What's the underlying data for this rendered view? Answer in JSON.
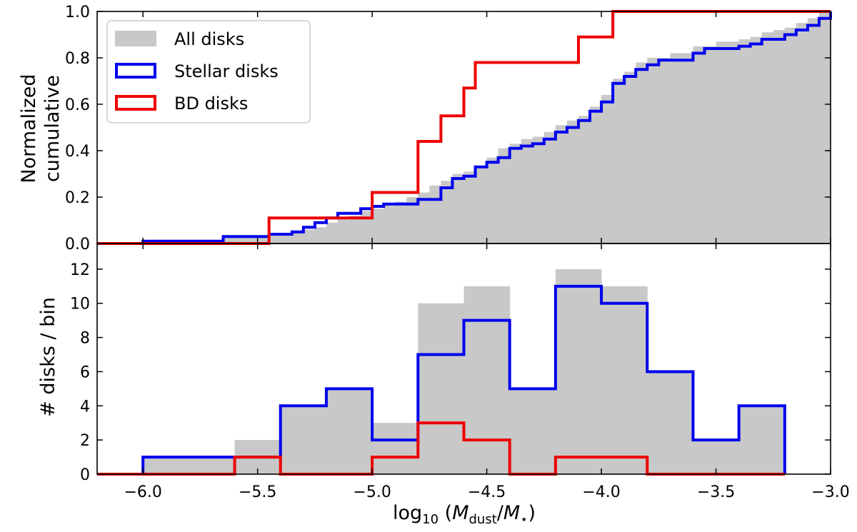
{
  "chart_data": [
    {
      "type": "step-histogram-cumulative",
      "panel": "top",
      "ylabel_lines": [
        "Normalized",
        "cumulative"
      ],
      "xlim": [
        -6.2,
        -3.0
      ],
      "ylim": [
        0.0,
        1.0
      ],
      "yticks": [
        0.0,
        0.2,
        0.4,
        0.6,
        0.8,
        1.0
      ],
      "ytick_labels": [
        "0.0",
        "0.2",
        "0.4",
        "0.6",
        "0.8",
        "1.0"
      ],
      "xticks": [
        -6.0,
        -5.5,
        -5.0,
        -4.5,
        -4.0,
        -3.5,
        -3.0
      ],
      "legend": {
        "placement": "upper-left",
        "entries": [
          {
            "label": "All disks",
            "style": "filled",
            "color": "#c8c8c8"
          },
          {
            "label": "Stellar disks",
            "style": "outline",
            "color": "#0000ee"
          },
          {
            "label": "BD disks",
            "style": "outline",
            "color": "#ee0000"
          }
        ]
      },
      "series": [
        {
          "name": "All disks",
          "color": "#c8c8c8",
          "style": "filled",
          "steps": [
            [
              -6.2,
              0
            ],
            [
              -6.0,
              0.01
            ],
            [
              -5.65,
              0.03
            ],
            [
              -5.45,
              0.04
            ],
            [
              -5.35,
              0.05
            ],
            [
              -5.3,
              0.06
            ],
            [
              -5.25,
              0.07
            ],
            [
              -5.2,
              0.09
            ],
            [
              -5.15,
              0.11
            ],
            [
              -5.1,
              0.12
            ],
            [
              -5.05,
              0.14
            ],
            [
              -5.0,
              0.15
            ],
            [
              -4.95,
              0.17
            ],
            [
              -4.9,
              0.18
            ],
            [
              -4.85,
              0.2
            ],
            [
              -4.8,
              0.22
            ],
            [
              -4.75,
              0.25
            ],
            [
              -4.7,
              0.27
            ],
            [
              -4.65,
              0.3
            ],
            [
              -4.6,
              0.31
            ],
            [
              -4.55,
              0.33
            ],
            [
              -4.5,
              0.37
            ],
            [
              -4.45,
              0.41
            ],
            [
              -4.4,
              0.43
            ],
            [
              -4.35,
              0.45
            ],
            [
              -4.3,
              0.46
            ],
            [
              -4.25,
              0.48
            ],
            [
              -4.2,
              0.51
            ],
            [
              -4.15,
              0.53
            ],
            [
              -4.1,
              0.55
            ],
            [
              -4.05,
              0.59
            ],
            [
              -4.0,
              0.64
            ],
            [
              -3.95,
              0.71
            ],
            [
              -3.9,
              0.74
            ],
            [
              -3.85,
              0.78
            ],
            [
              -3.8,
              0.8
            ],
            [
              -3.7,
              0.82
            ],
            [
              -3.6,
              0.85
            ],
            [
              -3.5,
              0.87
            ],
            [
              -3.4,
              0.88
            ],
            [
              -3.35,
              0.89
            ],
            [
              -3.3,
              0.91
            ],
            [
              -3.25,
              0.92
            ],
            [
              -3.2,
              0.93
            ],
            [
              -3.15,
              0.95
            ],
            [
              -3.1,
              0.97
            ],
            [
              -3.05,
              1.0
            ],
            [
              -3.0,
              1.0
            ]
          ]
        },
        {
          "name": "Stellar disks",
          "color": "#0000ee",
          "style": "outline",
          "steps": [
            [
              -6.2,
              0
            ],
            [
              -6.0,
              0.01
            ],
            [
              -5.65,
              0.03
            ],
            [
              -5.45,
              0.04
            ],
            [
              -5.35,
              0.05
            ],
            [
              -5.3,
              0.07
            ],
            [
              -5.25,
              0.09
            ],
            [
              -5.2,
              0.11
            ],
            [
              -5.15,
              0.13
            ],
            [
              -5.05,
              0.15
            ],
            [
              -5.0,
              0.16
            ],
            [
              -4.95,
              0.17
            ],
            [
              -4.8,
              0.19
            ],
            [
              -4.7,
              0.24
            ],
            [
              -4.65,
              0.28
            ],
            [
              -4.6,
              0.29
            ],
            [
              -4.55,
              0.33
            ],
            [
              -4.5,
              0.35
            ],
            [
              -4.45,
              0.37
            ],
            [
              -4.4,
              0.41
            ],
            [
              -4.35,
              0.42
            ],
            [
              -4.3,
              0.43
            ],
            [
              -4.25,
              0.45
            ],
            [
              -4.2,
              0.48
            ],
            [
              -4.15,
              0.5
            ],
            [
              -4.1,
              0.53
            ],
            [
              -4.05,
              0.57
            ],
            [
              -4.0,
              0.61
            ],
            [
              -3.95,
              0.69
            ],
            [
              -3.9,
              0.72
            ],
            [
              -3.85,
              0.75
            ],
            [
              -3.8,
              0.77
            ],
            [
              -3.75,
              0.79
            ],
            [
              -3.6,
              0.82
            ],
            [
              -3.55,
              0.84
            ],
            [
              -3.4,
              0.85
            ],
            [
              -3.35,
              0.86
            ],
            [
              -3.3,
              0.88
            ],
            [
              -3.2,
              0.9
            ],
            [
              -3.15,
              0.92
            ],
            [
              -3.1,
              0.94
            ],
            [
              -3.05,
              0.97
            ],
            [
              -3.0,
              1.0
            ]
          ]
        },
        {
          "name": "BD disks",
          "color": "#ee0000",
          "style": "outline",
          "steps": [
            [
              -6.2,
              0
            ],
            [
              -5.45,
              0.11
            ],
            [
              -5.0,
              0.22
            ],
            [
              -4.8,
              0.44
            ],
            [
              -4.7,
              0.55
            ],
            [
              -4.6,
              0.67
            ],
            [
              -4.55,
              0.78
            ],
            [
              -4.1,
              0.89
            ],
            [
              -3.95,
              1.0
            ],
            [
              -3.0,
              1.0
            ]
          ]
        }
      ]
    },
    {
      "type": "step-histogram",
      "panel": "bottom",
      "ylabel": "# disks / bin",
      "xlabel": "log₁₀ (M_dust/M⋆)",
      "xlabel_parts": {
        "prefix": "log",
        "subscript_10": "10",
        "open": " (",
        "m1": "M",
        "sub1": "dust",
        "slash": "/",
        "m2": "M",
        "sub2": "⋆",
        "close": ")"
      },
      "xlim": [
        -6.2,
        -3.0
      ],
      "ylim": [
        0,
        13.5
      ],
      "yticks": [
        0,
        2,
        4,
        6,
        8,
        10,
        12
      ],
      "ytick_labels": [
        "0",
        "2",
        "4",
        "6",
        "8",
        "10",
        "12"
      ],
      "xticks": [
        -6.0,
        -5.5,
        -5.0,
        -4.5,
        -4.0,
        -3.5,
        -3.0
      ],
      "xtick_labels": [
        "−6.0",
        "−5.5",
        "−5.0",
        "−4.5",
        "−4.0",
        "−3.5",
        "−3.0"
      ],
      "bin_edges": [
        -6.0,
        -5.8,
        -5.6,
        -5.4,
        -5.2,
        -5.0,
        -4.8,
        -4.6,
        -4.4,
        -4.2,
        -4.0,
        -3.8,
        -3.6,
        -3.4,
        -3.2
      ],
      "series": [
        {
          "name": "All disks",
          "color": "#c8c8c8",
          "style": "filled",
          "values": [
            1,
            1,
            2,
            4,
            5,
            3,
            10,
            11,
            5,
            12,
            11,
            6,
            2,
            4
          ]
        },
        {
          "name": "Stellar disks",
          "color": "#0000ee",
          "style": "outline",
          "values": [
            1,
            1,
            1,
            4,
            5,
            2,
            7,
            9,
            5,
            11,
            10,
            6,
            2,
            4
          ]
        },
        {
          "name": "BD disks",
          "color": "#ee0000",
          "style": "outline",
          "values": [
            0,
            0,
            1,
            0,
            0,
            1,
            3,
            2,
            0,
            1,
            1,
            0,
            0,
            0
          ]
        }
      ]
    }
  ]
}
